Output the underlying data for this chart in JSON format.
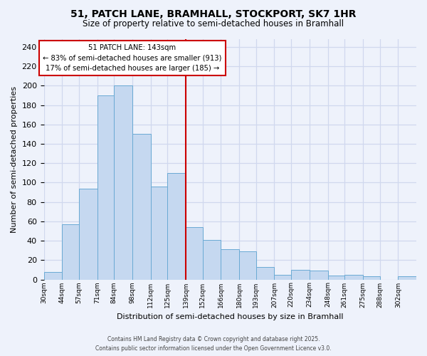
{
  "title": "51, PATCH LANE, BRAMHALL, STOCKPORT, SK7 1HR",
  "subtitle": "Size of property relative to semi-detached houses in Bramhall",
  "xlabel": "Distribution of semi-detached houses by size in Bramhall",
  "ylabel": "Number of semi-detached properties",
  "bin_labels": [
    "30sqm",
    "44sqm",
    "57sqm",
    "71sqm",
    "84sqm",
    "98sqm",
    "112sqm",
    "125sqm",
    "139sqm",
    "152sqm",
    "166sqm",
    "180sqm",
    "193sqm",
    "207sqm",
    "220sqm",
    "234sqm",
    "248sqm",
    "261sqm",
    "275sqm",
    "288sqm",
    "302sqm"
  ],
  "bin_edges": [
    30,
    44,
    57,
    71,
    84,
    98,
    112,
    125,
    139,
    152,
    166,
    180,
    193,
    207,
    220,
    234,
    248,
    261,
    275,
    288,
    302,
    316
  ],
  "counts": [
    8,
    57,
    94,
    190,
    200,
    150,
    96,
    110,
    54,
    41,
    31,
    29,
    13,
    5,
    10,
    9,
    4,
    5,
    3,
    0,
    3
  ],
  "bar_color": "#c5d8f0",
  "bar_edge_color": "#6aaad4",
  "vline_x": 139,
  "vline_color": "#cc0000",
  "annotation_title": "51 PATCH LANE: 143sqm",
  "annotation_line1": "← 83% of semi-detached houses are smaller (913)",
  "annotation_line2": "17% of semi-detached houses are larger (185) →",
  "annotation_box_color": "#ffffff",
  "annotation_box_edge": "#cc0000",
  "ylim": [
    0,
    248
  ],
  "yticks": [
    0,
    20,
    40,
    60,
    80,
    100,
    120,
    140,
    160,
    180,
    200,
    220,
    240
  ],
  "background_color": "#eef2fb",
  "grid_color": "#d0d8ee",
  "footer1": "Contains HM Land Registry data © Crown copyright and database right 2025.",
  "footer2": "Contains public sector information licensed under the Open Government Licence v3.0."
}
